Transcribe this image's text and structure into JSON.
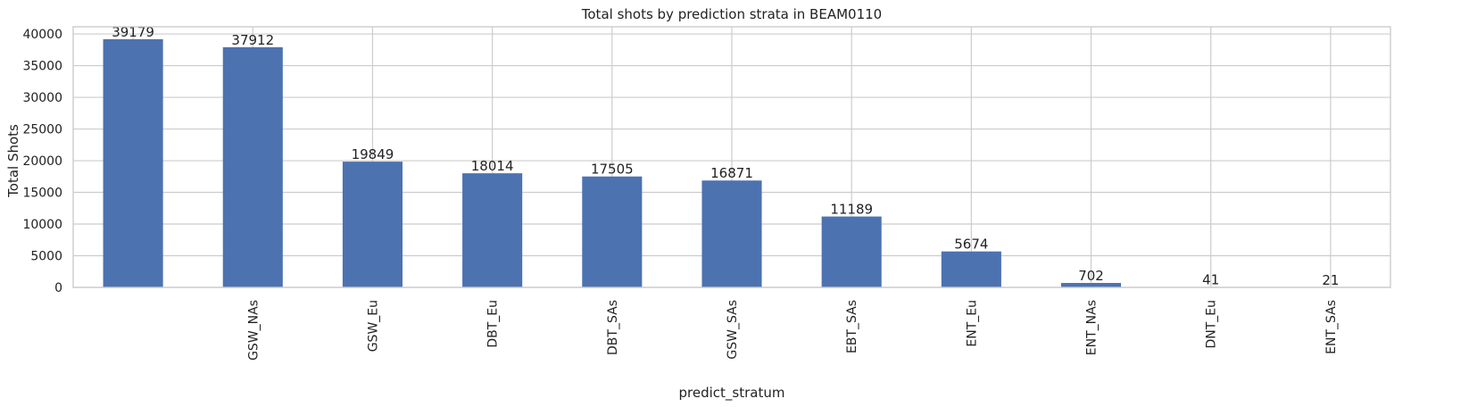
{
  "chart_data": {
    "type": "bar",
    "title": "Total shots by prediction strata in BEAM0110",
    "xlabel": "predict_stratum",
    "ylabel": "Total Shots",
    "categories": [
      "",
      "GSW_NAs",
      "GSW_Eu",
      "DBT_Eu",
      "DBT_SAs",
      "GSW_SAs",
      "EBT_SAs",
      "ENT_Eu",
      "ENT_NAs",
      "DNT_Eu",
      "ENT_SAs"
    ],
    "values": [
      39179,
      37912,
      19849,
      18014,
      17505,
      16871,
      11189,
      5674,
      702,
      41,
      21
    ],
    "data_labels": [
      "39179",
      "37912",
      "19849",
      "18014",
      "17505",
      "16871",
      "11189",
      "5674",
      "702",
      "41",
      "21"
    ],
    "yticks": [
      0,
      5000,
      10000,
      15000,
      20000,
      25000,
      30000,
      35000,
      40000
    ],
    "ytick_labels": [
      "0",
      "5000",
      "10000",
      "15000",
      "20000",
      "25000",
      "30000",
      "35000",
      "40000"
    ],
    "ylim": [
      0,
      41138
    ],
    "grid": true,
    "bar_color": "#4c72b0"
  }
}
